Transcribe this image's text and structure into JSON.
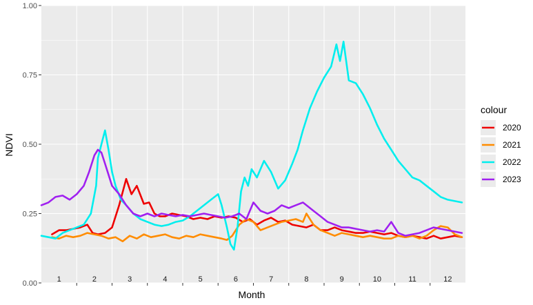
{
  "chart_data": {
    "type": "line",
    "title": "",
    "xlabel": "Month",
    "ylabel": "NDVI",
    "ylim": [
      0,
      1
    ],
    "yticks": [
      "0.00",
      "0.25",
      "0.50",
      "0.75",
      "1.00"
    ],
    "xlim": [
      0.5,
      12.5
    ],
    "month_labels": [
      "1",
      "2",
      "3",
      "4",
      "5",
      "6",
      "7",
      "8",
      "9",
      "10",
      "11",
      "12"
    ],
    "grid": true,
    "legend": {
      "title": "colour",
      "position": "right"
    },
    "series": [
      {
        "name": "2020",
        "color": "#ee0000",
        "x": [
          0.8,
          1.0,
          1.2,
          1.4,
          1.6,
          1.8,
          1.95,
          2.1,
          2.3,
          2.5,
          2.7,
          2.9,
          3.05,
          3.2,
          3.4,
          3.55,
          3.7,
          3.85,
          4.0,
          4.2,
          4.4,
          4.6,
          4.8,
          5.0,
          5.2,
          5.4,
          5.6,
          5.8,
          6.0,
          6.2,
          6.4,
          6.6,
          6.8,
          7.0,
          7.2,
          7.4,
          7.6,
          7.8,
          8.0,
          8.2,
          8.4,
          8.6,
          8.8,
          9.0,
          9.2,
          9.4,
          9.6,
          9.8,
          10.0,
          10.2,
          10.4,
          10.6,
          10.8,
          11.0,
          11.2,
          11.4,
          11.6,
          11.8,
          12.0,
          12.2,
          12.4
        ],
        "y": [
          0.175,
          0.19,
          0.19,
          0.195,
          0.2,
          0.21,
          0.18,
          0.175,
          0.18,
          0.2,
          0.28,
          0.375,
          0.32,
          0.35,
          0.285,
          0.29,
          0.25,
          0.24,
          0.24,
          0.25,
          0.245,
          0.24,
          0.23,
          0.235,
          0.23,
          0.24,
          0.235,
          0.24,
          0.235,
          0.22,
          0.23,
          0.21,
          0.225,
          0.235,
          0.22,
          0.225,
          0.21,
          0.205,
          0.2,
          0.21,
          0.19,
          0.19,
          0.2,
          0.19,
          0.185,
          0.18,
          0.18,
          0.185,
          0.18,
          0.175,
          0.18,
          0.17,
          0.165,
          0.17,
          0.165,
          0.16,
          0.17,
          0.16,
          0.165,
          0.17,
          0.165
        ]
      },
      {
        "name": "2021",
        "color": "#ff8c00",
        "x": [
          0.8,
          1.0,
          1.2,
          1.4,
          1.6,
          1.8,
          2.0,
          2.2,
          2.4,
          2.6,
          2.8,
          3.0,
          3.2,
          3.4,
          3.6,
          3.8,
          4.0,
          4.2,
          4.4,
          4.6,
          4.8,
          5.0,
          5.2,
          5.4,
          5.6,
          5.75,
          5.9,
          6.1,
          6.3,
          6.5,
          6.7,
          6.9,
          7.1,
          7.3,
          7.5,
          7.7,
          7.9,
          8.0,
          8.2,
          8.4,
          8.6,
          8.8,
          9.0,
          9.2,
          9.4,
          9.6,
          9.8,
          10.0,
          10.2,
          10.4,
          10.6,
          10.8,
          11.0,
          11.2,
          11.4,
          11.6,
          11.8,
          12.0,
          12.2,
          12.4
        ],
        "y": [
          0.165,
          0.16,
          0.17,
          0.165,
          0.17,
          0.18,
          0.175,
          0.17,
          0.16,
          0.165,
          0.15,
          0.17,
          0.16,
          0.175,
          0.165,
          0.17,
          0.175,
          0.165,
          0.16,
          0.17,
          0.165,
          0.175,
          0.17,
          0.165,
          0.16,
          0.155,
          0.17,
          0.21,
          0.23,
          0.22,
          0.19,
          0.2,
          0.21,
          0.22,
          0.225,
          0.23,
          0.22,
          0.25,
          0.21,
          0.19,
          0.18,
          0.17,
          0.18,
          0.175,
          0.17,
          0.165,
          0.17,
          0.165,
          0.16,
          0.16,
          0.17,
          0.165,
          0.17,
          0.16,
          0.17,
          0.19,
          0.205,
          0.2,
          0.175,
          0.165
        ]
      },
      {
        "name": "2022",
        "color": "#00eeee",
        "x": [
          0.5,
          0.7,
          0.9,
          1.1,
          1.3,
          1.5,
          1.7,
          1.9,
          2.05,
          2.1,
          2.2,
          2.3,
          2.4,
          2.5,
          2.6,
          2.75,
          2.9,
          3.1,
          3.3,
          3.5,
          3.7,
          3.9,
          4.1,
          4.3,
          4.5,
          4.7,
          4.9,
          5.1,
          5.3,
          5.5,
          5.6,
          5.75,
          5.85,
          5.95,
          6.05,
          6.15,
          6.25,
          6.35,
          6.45,
          6.6,
          6.8,
          7.0,
          7.2,
          7.4,
          7.6,
          7.75,
          7.9,
          8.1,
          8.3,
          8.5,
          8.7,
          8.85,
          8.95,
          9.05,
          9.2,
          9.4,
          9.6,
          9.8,
          10.0,
          10.2,
          10.4,
          10.6,
          10.8,
          11.0,
          11.2,
          11.4,
          11.6,
          11.8,
          12.0,
          12.2,
          12.4
        ],
        "y": [
          0.17,
          0.165,
          0.16,
          0.18,
          0.19,
          0.2,
          0.21,
          0.25,
          0.35,
          0.45,
          0.5,
          0.55,
          0.48,
          0.4,
          0.35,
          0.3,
          0.28,
          0.25,
          0.23,
          0.22,
          0.21,
          0.205,
          0.21,
          0.22,
          0.225,
          0.24,
          0.26,
          0.28,
          0.3,
          0.32,
          0.28,
          0.2,
          0.14,
          0.12,
          0.2,
          0.33,
          0.38,
          0.35,
          0.41,
          0.38,
          0.44,
          0.4,
          0.34,
          0.37,
          0.43,
          0.48,
          0.55,
          0.63,
          0.69,
          0.74,
          0.78,
          0.86,
          0.8,
          0.87,
          0.73,
          0.72,
          0.68,
          0.63,
          0.57,
          0.52,
          0.48,
          0.44,
          0.41,
          0.38,
          0.37,
          0.35,
          0.33,
          0.31,
          0.3,
          0.295,
          0.29
        ]
      },
      {
        "name": "2023",
        "color": "#a020f0",
        "x": [
          0.5,
          0.7,
          0.9,
          1.1,
          1.3,
          1.5,
          1.7,
          1.85,
          2.0,
          2.1,
          2.2,
          2.3,
          2.5,
          2.7,
          2.9,
          3.1,
          3.3,
          3.5,
          3.7,
          3.9,
          4.1,
          4.3,
          4.5,
          4.7,
          4.9,
          5.1,
          5.3,
          5.5,
          5.7,
          5.9,
          6.1,
          6.3,
          6.5,
          6.7,
          6.9,
          7.1,
          7.3,
          7.5,
          7.7,
          7.9,
          8.0,
          8.2,
          8.4,
          8.6,
          8.8,
          9.0,
          9.2,
          9.4,
          9.6,
          9.8,
          10.0,
          10.2,
          10.4,
          10.6,
          10.8,
          11.0,
          11.2,
          11.4,
          11.6,
          11.8,
          12.0,
          12.2,
          12.4
        ],
        "y": [
          0.28,
          0.29,
          0.31,
          0.315,
          0.3,
          0.32,
          0.35,
          0.4,
          0.46,
          0.48,
          0.47,
          0.43,
          0.35,
          0.32,
          0.28,
          0.25,
          0.24,
          0.25,
          0.24,
          0.25,
          0.245,
          0.24,
          0.245,
          0.24,
          0.245,
          0.25,
          0.245,
          0.24,
          0.235,
          0.24,
          0.25,
          0.23,
          0.29,
          0.26,
          0.25,
          0.26,
          0.28,
          0.27,
          0.28,
          0.29,
          0.28,
          0.26,
          0.24,
          0.22,
          0.21,
          0.2,
          0.2,
          0.195,
          0.19,
          0.185,
          0.19,
          0.185,
          0.22,
          0.18,
          0.17,
          0.175,
          0.18,
          0.19,
          0.2,
          0.195,
          0.19,
          0.185,
          0.18
        ]
      }
    ]
  }
}
